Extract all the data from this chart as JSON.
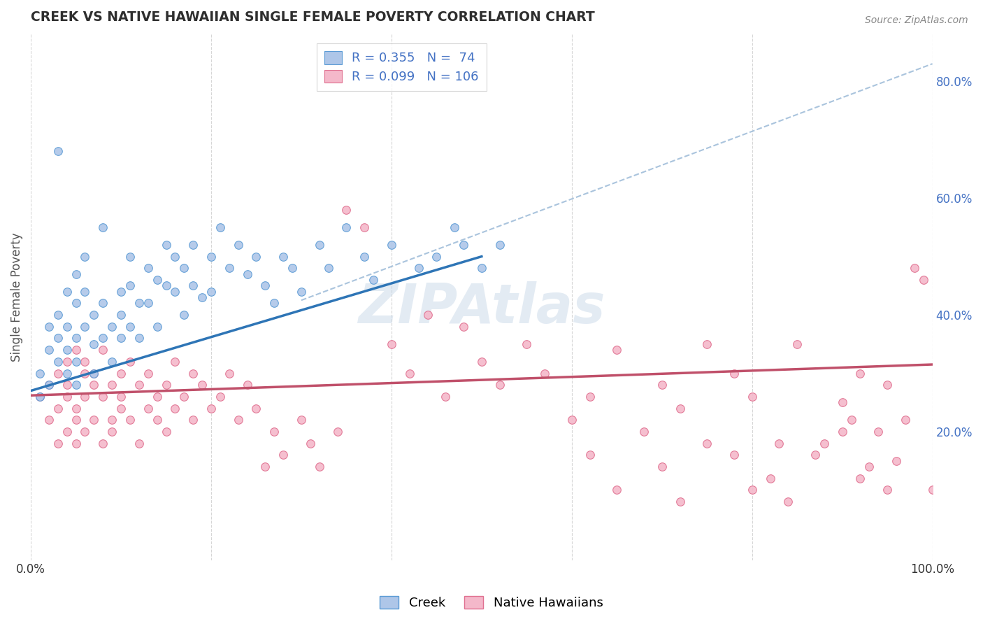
{
  "title": "CREEK VS NATIVE HAWAIIAN SINGLE FEMALE POVERTY CORRELATION CHART",
  "source_text": "Source: ZipAtlas.com",
  "ylabel": "Single Female Poverty",
  "xlim": [
    0.0,
    1.0
  ],
  "ylim": [
    -0.02,
    0.88
  ],
  "x_ticks": [
    0.0,
    0.2,
    0.4,
    0.6,
    0.8,
    1.0
  ],
  "x_tick_labels": [
    "0.0%",
    "",
    "",
    "",
    "",
    "100.0%"
  ],
  "y_ticks_right": [
    0.2,
    0.4,
    0.6,
    0.8
  ],
  "y_tick_labels_right": [
    "20.0%",
    "40.0%",
    "60.0%",
    "80.0%"
  ],
  "creek_fill_color": "#aec6e8",
  "creek_edge_color": "#5b9bd5",
  "hawaiian_fill_color": "#f4b8ca",
  "hawaiian_edge_color": "#e07090",
  "creek_line_color": "#2e75b6",
  "hawaiian_line_color": "#c0506a",
  "dashed_line_color": "#aac4dd",
  "R_creek": 0.355,
  "N_creek": 74,
  "R_hawaiian": 0.099,
  "N_hawaiian": 106,
  "legend_entries": [
    "Creek",
    "Native Hawaiians"
  ],
  "watermark": "ZIPAtlas",
  "background_color": "#ffffff",
  "grid_color": "#cccccc",
  "title_color": "#333333",
  "creek_scatter_x": [
    0.01,
    0.01,
    0.02,
    0.02,
    0.02,
    0.03,
    0.03,
    0.03,
    0.03,
    0.04,
    0.04,
    0.04,
    0.04,
    0.05,
    0.05,
    0.05,
    0.05,
    0.05,
    0.06,
    0.06,
    0.06,
    0.07,
    0.07,
    0.07,
    0.08,
    0.08,
    0.08,
    0.09,
    0.09,
    0.1,
    0.1,
    0.1,
    0.11,
    0.11,
    0.11,
    0.12,
    0.12,
    0.13,
    0.13,
    0.14,
    0.14,
    0.15,
    0.15,
    0.16,
    0.16,
    0.17,
    0.17,
    0.18,
    0.18,
    0.19,
    0.2,
    0.2,
    0.21,
    0.22,
    0.23,
    0.24,
    0.25,
    0.26,
    0.27,
    0.28,
    0.29,
    0.3,
    0.32,
    0.33,
    0.35,
    0.37,
    0.38,
    0.4,
    0.43,
    0.45,
    0.47,
    0.48,
    0.5,
    0.52
  ],
  "creek_scatter_y": [
    0.3,
    0.26,
    0.34,
    0.28,
    0.38,
    0.32,
    0.36,
    0.4,
    0.68,
    0.3,
    0.44,
    0.38,
    0.34,
    0.28,
    0.36,
    0.42,
    0.47,
    0.32,
    0.38,
    0.44,
    0.5,
    0.35,
    0.4,
    0.3,
    0.36,
    0.42,
    0.55,
    0.32,
    0.38,
    0.44,
    0.4,
    0.36,
    0.5,
    0.45,
    0.38,
    0.42,
    0.36,
    0.48,
    0.42,
    0.46,
    0.38,
    0.52,
    0.45,
    0.5,
    0.44,
    0.48,
    0.4,
    0.45,
    0.52,
    0.43,
    0.5,
    0.44,
    0.55,
    0.48,
    0.52,
    0.47,
    0.5,
    0.45,
    0.42,
    0.5,
    0.48,
    0.44,
    0.52,
    0.48,
    0.55,
    0.5,
    0.46,
    0.52,
    0.48,
    0.5,
    0.55,
    0.52,
    0.48,
    0.52
  ],
  "hawaiian_scatter_x": [
    0.01,
    0.02,
    0.02,
    0.03,
    0.03,
    0.03,
    0.04,
    0.04,
    0.04,
    0.04,
    0.05,
    0.05,
    0.05,
    0.05,
    0.06,
    0.06,
    0.06,
    0.06,
    0.07,
    0.07,
    0.07,
    0.08,
    0.08,
    0.08,
    0.09,
    0.09,
    0.09,
    0.1,
    0.1,
    0.1,
    0.11,
    0.11,
    0.12,
    0.12,
    0.13,
    0.13,
    0.14,
    0.14,
    0.15,
    0.15,
    0.16,
    0.16,
    0.17,
    0.18,
    0.18,
    0.19,
    0.2,
    0.21,
    0.22,
    0.23,
    0.24,
    0.25,
    0.26,
    0.27,
    0.28,
    0.3,
    0.31,
    0.32,
    0.34,
    0.35,
    0.37,
    0.4,
    0.42,
    0.44,
    0.46,
    0.48,
    0.5,
    0.52,
    0.55,
    0.57,
    0.6,
    0.62,
    0.65,
    0.68,
    0.7,
    0.72,
    0.75,
    0.78,
    0.8,
    0.83,
    0.85,
    0.88,
    0.9,
    0.91,
    0.92,
    0.93,
    0.94,
    0.95,
    0.96,
    0.97,
    0.98,
    0.99,
    1.0,
    0.62,
    0.65,
    0.7,
    0.72,
    0.75,
    0.78,
    0.8,
    0.82,
    0.84,
    0.87,
    0.9,
    0.92,
    0.95
  ],
  "hawaiian_scatter_y": [
    0.26,
    0.28,
    0.22,
    0.3,
    0.18,
    0.24,
    0.32,
    0.2,
    0.26,
    0.28,
    0.22,
    0.34,
    0.18,
    0.24,
    0.3,
    0.26,
    0.32,
    0.2,
    0.28,
    0.22,
    0.3,
    0.18,
    0.26,
    0.34,
    0.22,
    0.28,
    0.2,
    0.24,
    0.3,
    0.26,
    0.32,
    0.22,
    0.28,
    0.18,
    0.24,
    0.3,
    0.22,
    0.26,
    0.2,
    0.28,
    0.24,
    0.32,
    0.26,
    0.22,
    0.3,
    0.28,
    0.24,
    0.26,
    0.3,
    0.22,
    0.28,
    0.24,
    0.14,
    0.2,
    0.16,
    0.22,
    0.18,
    0.14,
    0.2,
    0.58,
    0.55,
    0.35,
    0.3,
    0.4,
    0.26,
    0.38,
    0.32,
    0.28,
    0.35,
    0.3,
    0.22,
    0.26,
    0.34,
    0.2,
    0.28,
    0.24,
    0.35,
    0.3,
    0.26,
    0.18,
    0.35,
    0.18,
    0.25,
    0.22,
    0.3,
    0.14,
    0.2,
    0.28,
    0.15,
    0.22,
    0.48,
    0.46,
    0.1,
    0.16,
    0.1,
    0.14,
    0.08,
    0.18,
    0.16,
    0.1,
    0.12,
    0.08,
    0.16,
    0.2,
    0.12,
    0.1
  ],
  "creek_trend_x": [
    0.0,
    0.5
  ],
  "creek_trend_y": [
    0.27,
    0.5
  ],
  "hawaiian_trend_x": [
    0.0,
    1.0
  ],
  "hawaiian_trend_y": [
    0.262,
    0.315
  ],
  "dashed_trend_x": [
    0.3,
    1.0
  ],
  "dashed_trend_y": [
    0.425,
    0.83
  ]
}
